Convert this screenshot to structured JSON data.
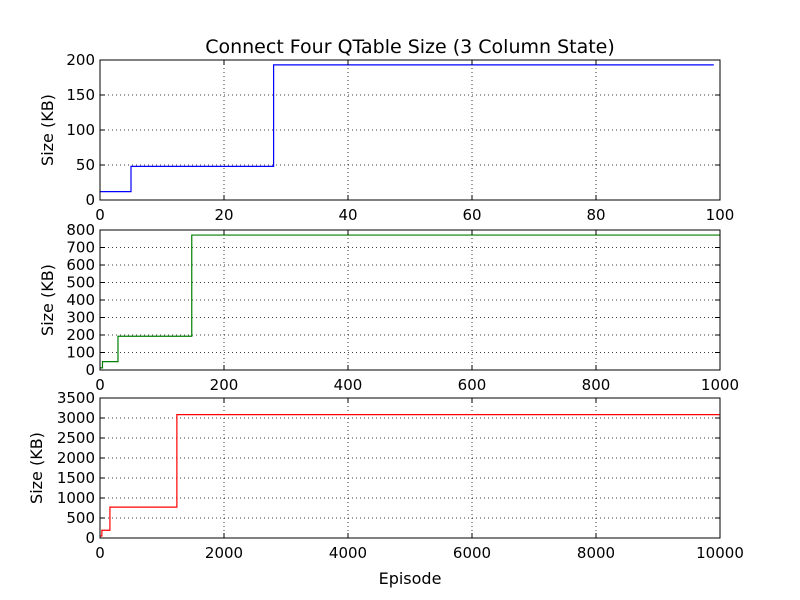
{
  "figure": {
    "title": "Connect Four QTable Size (3 Column State)",
    "xlabel": "Episode"
  },
  "chart_data": [
    {
      "type": "line",
      "ylabel": "Size (KB)",
      "xlim": [
        0,
        100
      ],
      "ylim": [
        0,
        200
      ],
      "xticks": [
        0,
        20,
        40,
        60,
        80,
        100
      ],
      "yticks": [
        0,
        50,
        100,
        150,
        200
      ],
      "grid": true,
      "step": true,
      "series": [
        {
          "color": "#0000ff",
          "x": [
            0,
            4,
            5,
            27,
            28,
            99
          ],
          "y": [
            12,
            12,
            48,
            48,
            193,
            193
          ]
        }
      ]
    },
    {
      "type": "line",
      "ylabel": "Size (KB)",
      "xlim": [
        0,
        1000
      ],
      "ylim": [
        0,
        800
      ],
      "xticks": [
        0,
        200,
        400,
        600,
        800,
        1000
      ],
      "yticks": [
        0,
        100,
        200,
        300,
        400,
        500,
        600,
        700,
        800
      ],
      "grid": true,
      "step": true,
      "series": [
        {
          "color": "#008000",
          "x": [
            0,
            4,
            29,
            148,
            1000
          ],
          "y": [
            12,
            48,
            193,
            771,
            771
          ]
        }
      ]
    },
    {
      "type": "line",
      "ylabel": "Size (KB)",
      "xlim": [
        0,
        10000
      ],
      "ylim": [
        0,
        3500
      ],
      "xticks": [
        0,
        2000,
        4000,
        6000,
        8000,
        10000
      ],
      "yticks": [
        0,
        500,
        1000,
        1500,
        2000,
        2500,
        3000,
        3500
      ],
      "grid": true,
      "step": true,
      "series": [
        {
          "color": "#ff0000",
          "x": [
            0,
            30,
            160,
            1240,
            10000
          ],
          "y": [
            48,
            193,
            771,
            3084,
            3084
          ]
        }
      ]
    }
  ]
}
